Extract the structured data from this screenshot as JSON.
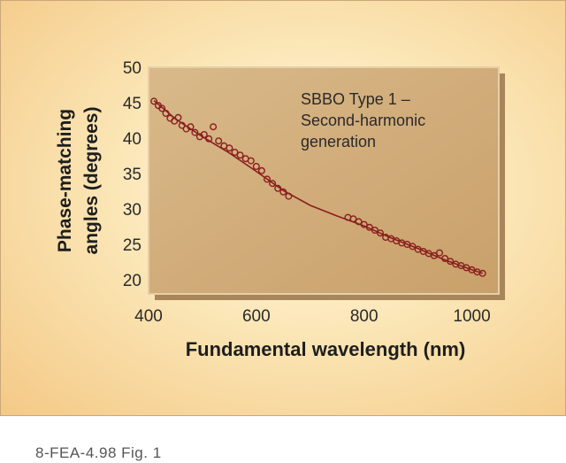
{
  "caption": "8-FEA-4.98 Fig. 1",
  "chart_data": {
    "type": "scatter",
    "annotation": [
      "SBBO Type 1 –",
      "Second-harmonic",
      "generation"
    ],
    "xlabel": "Fundamental wavelength (nm)",
    "ylabel": [
      "Phase-matching",
      "angles (degrees)"
    ],
    "xlim": [
      400,
      1050
    ],
    "ylim": [
      18,
      50
    ],
    "xticks": [
      400,
      600,
      800,
      1000
    ],
    "yticks": [
      20,
      25,
      30,
      35,
      40,
      45,
      50
    ],
    "grid": false,
    "series": [
      {
        "kind": "points",
        "color": "#8a1e1e",
        "x": [
          410,
          418,
          425,
          432,
          440,
          448,
          455,
          462,
          470,
          478,
          486,
          495,
          503,
          512,
          520,
          530,
          540,
          550,
          560,
          570,
          580,
          590,
          600,
          610,
          620,
          630,
          640,
          650,
          660,
          770,
          780,
          790,
          800,
          810,
          820,
          830,
          840,
          850,
          860,
          870,
          880,
          890,
          900,
          910,
          920,
          930,
          940,
          950,
          960,
          970,
          980,
          990,
          1000,
          1010,
          1020
        ],
        "y": [
          45.2,
          44.6,
          44.2,
          43.5,
          42.8,
          42.4,
          42.9,
          41.8,
          41.3,
          41.6,
          40.8,
          40.2,
          40.5,
          39.9,
          41.6,
          39.6,
          38.9,
          38.6,
          38.0,
          37.6,
          37.1,
          36.8,
          36.0,
          35.4,
          34.2,
          33.6,
          32.9,
          32.4,
          31.8,
          28.8,
          28.6,
          28.2,
          27.8,
          27.4,
          27.0,
          26.6,
          26.0,
          25.8,
          25.5,
          25.2,
          25.0,
          24.7,
          24.3,
          24.0,
          23.7,
          23.4,
          23.8,
          23.0,
          22.6,
          22.2,
          22.0,
          21.7,
          21.4,
          21.1,
          20.9
        ]
      },
      {
        "kind": "fit-line",
        "color": "#8a1e1e",
        "x": [
          410,
          450,
          500,
          550,
          600,
          650,
          700,
          750,
          800,
          850,
          900,
          950,
          1000,
          1020
        ],
        "y": [
          45.3,
          42.7,
          40.2,
          37.9,
          35.3,
          32.6,
          30.5,
          29.0,
          27.6,
          25.9,
          24.4,
          22.8,
          21.4,
          20.9
        ]
      }
    ]
  }
}
